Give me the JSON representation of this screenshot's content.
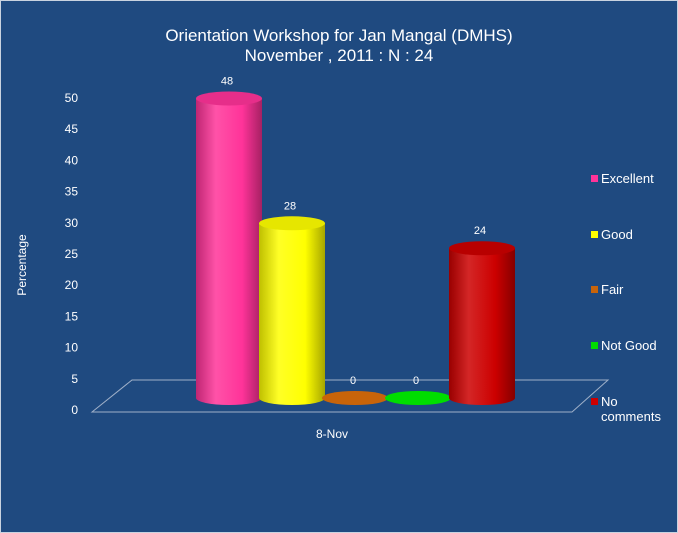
{
  "chart_data": {
    "type": "bar",
    "title": "Orientation Workshop for Jan Mangal (DMHS)",
    "subtitle": "November , 2011 : N : 24",
    "ylabel": "Percentage",
    "xlabel": "",
    "categories": [
      "8-Nov"
    ],
    "ylim": [
      0,
      50
    ],
    "yticks": [
      0,
      5,
      10,
      15,
      20,
      25,
      30,
      35,
      40,
      45,
      50
    ],
    "legend_position": "right",
    "series": [
      {
        "name": "Excellent",
        "values": [
          48
        ],
        "color": "#ff3399"
      },
      {
        "name": "Good",
        "values": [
          28
        ],
        "color": "#ffff00"
      },
      {
        "name": "Fair",
        "values": [
          0
        ],
        "color": "#c8640a"
      },
      {
        "name": "Not Good",
        "values": [
          0
        ],
        "color": "#00dd00"
      },
      {
        "name": "No comments",
        "values": [
          24
        ],
        "color": "#cc0000"
      }
    ]
  }
}
